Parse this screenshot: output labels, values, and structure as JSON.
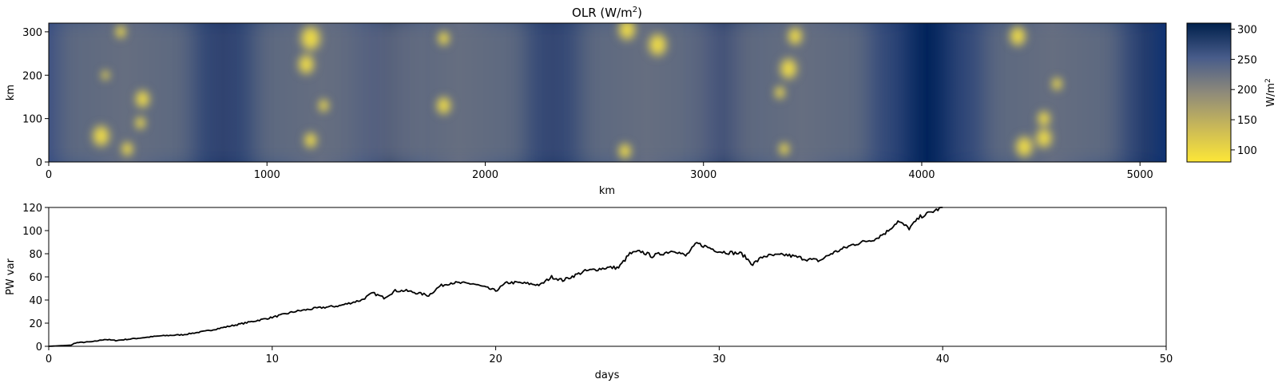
{
  "chart_data": [
    {
      "type": "heatmap",
      "title": "OLR (W/m2)",
      "title_main": "OLR (W/m",
      "title_sup": "2",
      "title_end": ")",
      "xlabel": "km",
      "ylabel": "km",
      "xlim": [
        0,
        5120
      ],
      "ylim": [
        0,
        320
      ],
      "x_ticks": [
        0,
        1000,
        2000,
        3000,
        4000,
        5000
      ],
      "y_ticks": [
        0,
        100,
        200,
        300
      ],
      "colormap": "cividis_r",
      "colorbar": {
        "label": "W/m2",
        "label_main": "W/m",
        "label_sup": "2",
        "range": [
          80,
          310
        ],
        "ticks": [
          100,
          150,
          200,
          250,
          300
        ],
        "color_low": "#fde737",
        "color_high": "#00204c"
      },
      "convective_bands_x_km": [
        350,
        1250,
        1880,
        2740,
        3450,
        4600
      ],
      "cloud_cores": [
        {
          "x": 240,
          "y": 60,
          "r": 30
        },
        {
          "x": 360,
          "y": 30,
          "r": 20
        },
        {
          "x": 420,
          "y": 90,
          "r": 18
        },
        {
          "x": 430,
          "y": 145,
          "r": 25
        },
        {
          "x": 260,
          "y": 200,
          "r": 14
        },
        {
          "x": 330,
          "y": 300,
          "r": 18
        },
        {
          "x": 1200,
          "y": 285,
          "r": 35
        },
        {
          "x": 1180,
          "y": 225,
          "r": 28
        },
        {
          "x": 1260,
          "y": 130,
          "r": 18
        },
        {
          "x": 1200,
          "y": 50,
          "r": 22
        },
        {
          "x": 1810,
          "y": 285,
          "r": 20
        },
        {
          "x": 1810,
          "y": 130,
          "r": 25
        },
        {
          "x": 2650,
          "y": 305,
          "r": 30
        },
        {
          "x": 2790,
          "y": 270,
          "r": 32
        },
        {
          "x": 2640,
          "y": 25,
          "r": 22
        },
        {
          "x": 3420,
          "y": 290,
          "r": 25
        },
        {
          "x": 3390,
          "y": 215,
          "r": 30
        },
        {
          "x": 3350,
          "y": 160,
          "r": 18
        },
        {
          "x": 3370,
          "y": 30,
          "r": 18
        },
        {
          "x": 4440,
          "y": 290,
          "r": 28
        },
        {
          "x": 4560,
          "y": 100,
          "r": 22
        },
        {
          "x": 4560,
          "y": 55,
          "r": 28
        },
        {
          "x": 4470,
          "y": 35,
          "r": 30
        },
        {
          "x": 4620,
          "y": 180,
          "r": 18
        }
      ]
    },
    {
      "type": "line",
      "xlabel": "days",
      "ylabel": "PW var",
      "xlim": [
        0,
        50
      ],
      "ylim": [
        0,
        120
      ],
      "x_ticks": [
        0,
        10,
        20,
        30,
        40,
        50
      ],
      "y_ticks": [
        0,
        20,
        40,
        60,
        80,
        100,
        120
      ],
      "line_color": "#000000",
      "x": [
        0,
        1,
        1.2,
        2,
        2.5,
        3,
        3.5,
        4,
        5,
        6,
        7,
        8,
        9,
        10,
        11,
        12,
        13,
        14,
        14.5,
        15,
        15.5,
        16,
        17,
        17.5,
        18,
        19,
        20,
        20.5,
        21,
        22,
        22.5,
        23,
        24,
        25,
        25.5,
        26,
        26.5,
        27,
        28,
        28.5,
        29,
        30,
        31,
        31.5,
        32,
        33,
        34,
        34.5,
        35,
        36,
        37,
        37.5,
        38,
        38.5,
        39,
        39.5,
        40
      ],
      "y": [
        0,
        1,
        3,
        4,
        6,
        5,
        6,
        7,
        9,
        10,
        13,
        17,
        21,
        25,
        30,
        33,
        35,
        40,
        46,
        42,
        48,
        48,
        44,
        52,
        55,
        54,
        48,
        55,
        55,
        53,
        60,
        57,
        65,
        68,
        68,
        80,
        82,
        78,
        83,
        78,
        89,
        82,
        80,
        71,
        78,
        79,
        75,
        74,
        80,
        88,
        93,
        99,
        108,
        102,
        112,
        116,
        120
      ]
    }
  ]
}
